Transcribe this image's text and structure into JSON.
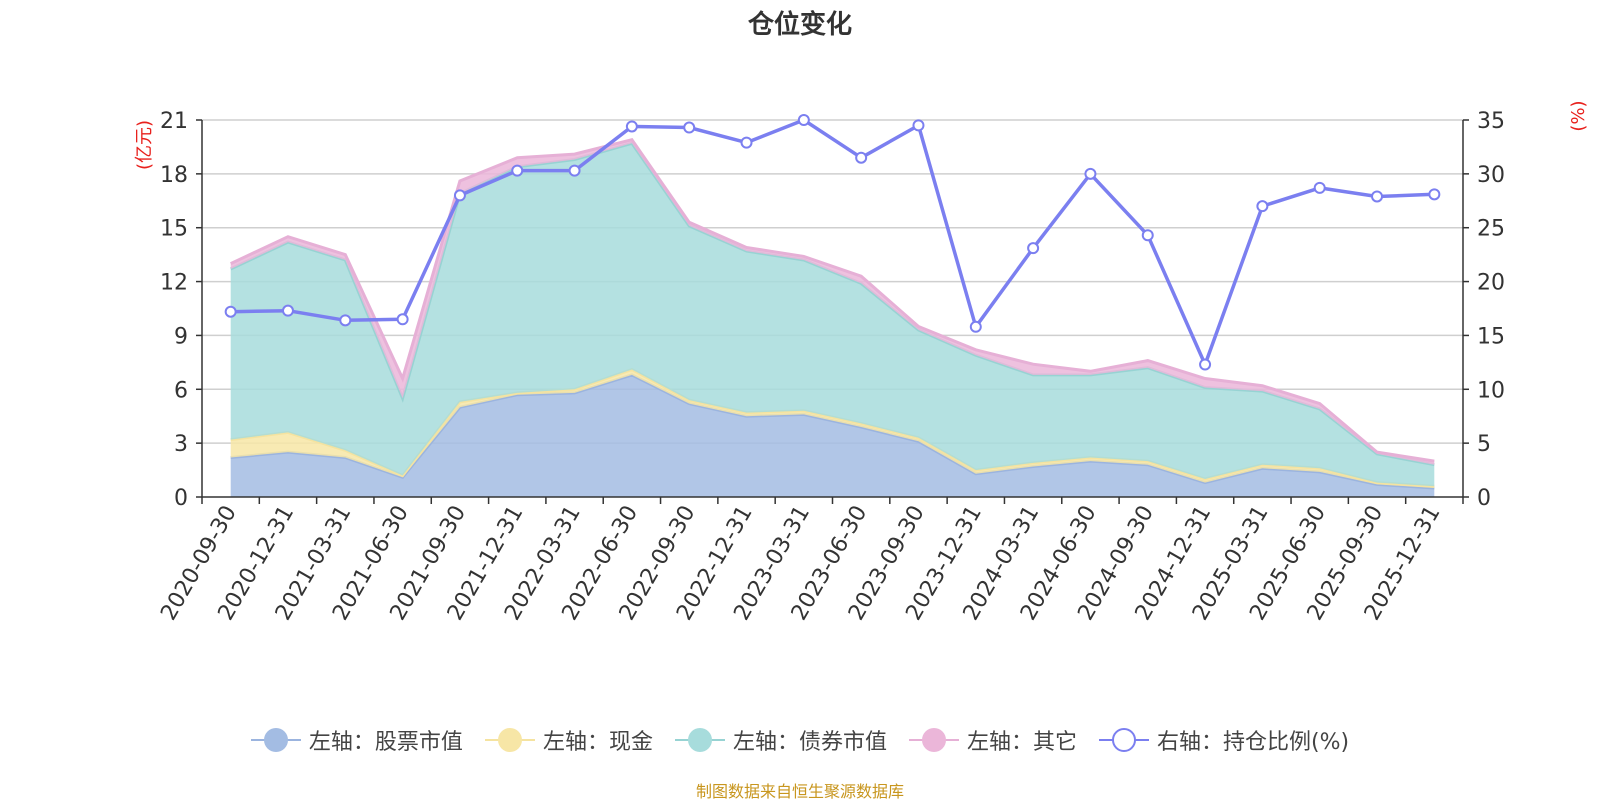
{
  "chart_data": {
    "type": "area",
    "title": "仓位变化",
    "y_left_label": "(亿元)",
    "y_right_label": "(%)",
    "y_left_ticks": [
      "0",
      "3",
      "6",
      "9",
      "12",
      "15",
      "18",
      "21"
    ],
    "y_right_ticks": [
      "0",
      "5",
      "10",
      "15",
      "20",
      "25",
      "30",
      "35"
    ],
    "ylim_left": [
      0,
      21
    ],
    "ylim_right": [
      0,
      35
    ],
    "categories": [
      "2020-09-30",
      "2020-12-31",
      "2021-03-31",
      "2021-06-30",
      "2021-09-30",
      "2021-12-31",
      "2022-03-31",
      "2022-06-30",
      "2022-09-30",
      "2022-12-31",
      "2023-03-31",
      "2023-06-30",
      "2023-09-30",
      "2023-12-31",
      "2024-03-31",
      "2024-06-30",
      "2024-09-30",
      "2024-12-31",
      "2025-03-31",
      "2025-06-30",
      "2025-09-30",
      "2025-12-31"
    ],
    "series": [
      {
        "name": "左轴：股票市值",
        "axis": "left",
        "stack": true,
        "color": "#a3bce3",
        "line_color": "#9bb4df",
        "values": [
          2.2,
          2.5,
          2.2,
          1.1,
          5.0,
          5.7,
          5.8,
          6.8,
          5.2,
          4.5,
          4.6,
          3.9,
          3.1,
          1.3,
          1.7,
          2.0,
          1.8,
          0.8,
          1.6,
          1.4,
          0.7,
          0.5
        ]
      },
      {
        "name": "左轴：现金",
        "axis": "left",
        "stack": true,
        "color": "#f7e6a6",
        "line_color": "#f5e3a0",
        "values": [
          1.0,
          1.1,
          0.4,
          0.1,
          0.3,
          0.1,
          0.2,
          0.3,
          0.2,
          0.2,
          0.2,
          0.2,
          0.2,
          0.2,
          0.2,
          0.2,
          0.2,
          0.2,
          0.2,
          0.2,
          0.1,
          0.1
        ]
      },
      {
        "name": "左轴：债券市值",
        "axis": "left",
        "stack": true,
        "color": "#a7dcdc",
        "line_color": "#97d3d3",
        "values": [
          9.5,
          10.6,
          10.6,
          4.3,
          11.6,
          12.6,
          12.8,
          12.6,
          9.7,
          9.0,
          8.4,
          7.8,
          6.0,
          6.4,
          4.9,
          4.6,
          5.2,
          5.1,
          4.1,
          3.3,
          1.6,
          1.2
        ]
      },
      {
        "name": "左轴：其它",
        "axis": "left",
        "stack": true,
        "color": "#ebb6d9",
        "line_color": "#e6b0d6",
        "values": [
          0.3,
          0.3,
          0.3,
          1.1,
          0.7,
          0.5,
          0.3,
          0.2,
          0.2,
          0.2,
          0.2,
          0.4,
          0.2,
          0.3,
          0.6,
          0.2,
          0.4,
          0.5,
          0.3,
          0.3,
          0.1,
          0.2
        ]
      },
      {
        "name": "右轴：持仓比例(%)",
        "axis": "right",
        "stack": false,
        "color": "#7b7ff0",
        "line_color": "#7b7ff0",
        "values": [
          17.2,
          17.3,
          16.4,
          16.5,
          28.0,
          30.3,
          30.3,
          34.4,
          34.3,
          32.9,
          35.0,
          31.5,
          34.5,
          15.8,
          23.1,
          30.0,
          24.3,
          12.3,
          27.0,
          28.7,
          27.9,
          28.1
        ]
      }
    ],
    "legend_position": "bottom-center",
    "grid": true
  },
  "source_note": "制图数据来自恒生聚源数据库"
}
